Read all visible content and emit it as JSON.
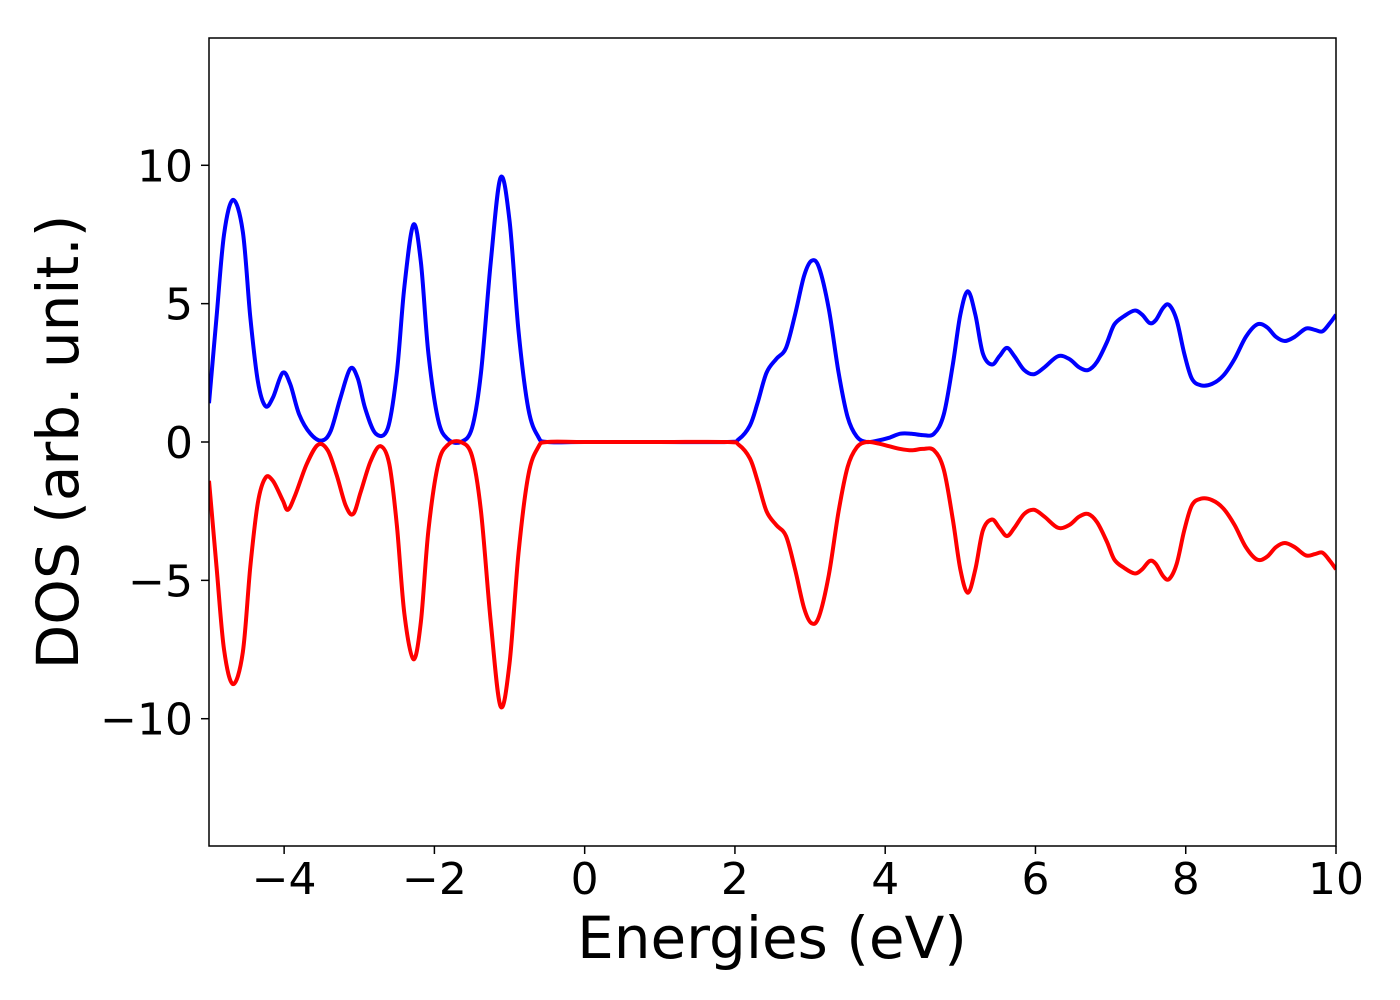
{
  "chart_data": {
    "type": "line",
    "title": "",
    "xlabel": "Energies (eV)",
    "ylabel": "DOS (arb. unit.)",
    "xlim": [
      -5,
      10
    ],
    "ylim": [
      -14.6,
      14.6
    ],
    "grid": false,
    "legend": "none",
    "x_ticks": [
      -4,
      -2,
      0,
      2,
      4,
      6,
      8,
      10
    ],
    "x_tick_labels": [
      "−4",
      "−2",
      "0",
      "2",
      "4",
      "6",
      "8",
      "10"
    ],
    "y_ticks": [
      10,
      5,
      0,
      -5,
      -10
    ],
    "y_tick_labels": [
      "10",
      "5",
      "0",
      "−5",
      "−10"
    ],
    "series": [
      {
        "color": "#0000ff",
        "points": [
          [
            -5.0,
            1.4
          ],
          [
            -4.9,
            4.5
          ],
          [
            -4.8,
            7.5
          ],
          [
            -4.68,
            8.75
          ],
          [
            -4.55,
            7.6
          ],
          [
            -4.45,
            4.5
          ],
          [
            -4.35,
            2.2
          ],
          [
            -4.25,
            1.3
          ],
          [
            -4.15,
            1.6
          ],
          [
            -4.02,
            2.5
          ],
          [
            -3.92,
            2.1
          ],
          [
            -3.8,
            1.0
          ],
          [
            -3.65,
            0.3
          ],
          [
            -3.5,
            0.05
          ],
          [
            -3.38,
            0.4
          ],
          [
            -3.25,
            1.6
          ],
          [
            -3.12,
            2.65
          ],
          [
            -3.02,
            2.3
          ],
          [
            -2.92,
            1.2
          ],
          [
            -2.78,
            0.3
          ],
          [
            -2.62,
            0.5
          ],
          [
            -2.5,
            2.5
          ],
          [
            -2.4,
            5.6
          ],
          [
            -2.28,
            7.85
          ],
          [
            -2.18,
            6.5
          ],
          [
            -2.08,
            3.2
          ],
          [
            -1.95,
            0.8
          ],
          [
            -1.82,
            0.1
          ],
          [
            -1.65,
            0.0
          ],
          [
            -1.5,
            0.5
          ],
          [
            -1.38,
            2.5
          ],
          [
            -1.25,
            6.5
          ],
          [
            -1.12,
            9.55
          ],
          [
            -1.0,
            8.0
          ],
          [
            -0.88,
            4.0
          ],
          [
            -0.75,
            1.2
          ],
          [
            -0.62,
            0.2
          ],
          [
            -0.5,
            0.0
          ],
          [
            0.0,
            0.0
          ],
          [
            1.0,
            0.0
          ],
          [
            1.9,
            0.0
          ],
          [
            2.05,
            0.1
          ],
          [
            2.2,
            0.6
          ],
          [
            2.3,
            1.4
          ],
          [
            2.42,
            2.5
          ],
          [
            2.55,
            3.0
          ],
          [
            2.68,
            3.4
          ],
          [
            2.8,
            4.6
          ],
          [
            2.92,
            6.0
          ],
          [
            3.02,
            6.55
          ],
          [
            3.12,
            6.3
          ],
          [
            3.25,
            4.8
          ],
          [
            3.38,
            2.5
          ],
          [
            3.5,
            0.9
          ],
          [
            3.62,
            0.2
          ],
          [
            3.75,
            0.0
          ],
          [
            3.9,
            0.05
          ],
          [
            4.05,
            0.15
          ],
          [
            4.2,
            0.3
          ],
          [
            4.35,
            0.3
          ],
          [
            4.5,
            0.25
          ],
          [
            4.65,
            0.3
          ],
          [
            4.78,
            1.0
          ],
          [
            4.9,
            2.8
          ],
          [
            5.0,
            4.6
          ],
          [
            5.1,
            5.45
          ],
          [
            5.2,
            4.6
          ],
          [
            5.3,
            3.2
          ],
          [
            5.42,
            2.8
          ],
          [
            5.52,
            3.1
          ],
          [
            5.62,
            3.4
          ],
          [
            5.72,
            3.1
          ],
          [
            5.85,
            2.6
          ],
          [
            5.98,
            2.45
          ],
          [
            6.12,
            2.7
          ],
          [
            6.3,
            3.1
          ],
          [
            6.45,
            3.0
          ],
          [
            6.58,
            2.7
          ],
          [
            6.7,
            2.6
          ],
          [
            6.82,
            2.9
          ],
          [
            6.95,
            3.6
          ],
          [
            7.05,
            4.25
          ],
          [
            7.18,
            4.55
          ],
          [
            7.32,
            4.75
          ],
          [
            7.42,
            4.6
          ],
          [
            7.52,
            4.3
          ],
          [
            7.6,
            4.4
          ],
          [
            7.7,
            4.85
          ],
          [
            7.78,
            4.95
          ],
          [
            7.88,
            4.4
          ],
          [
            7.98,
            3.2
          ],
          [
            8.08,
            2.3
          ],
          [
            8.2,
            2.05
          ],
          [
            8.35,
            2.1
          ],
          [
            8.5,
            2.4
          ],
          [
            8.65,
            3.0
          ],
          [
            8.8,
            3.8
          ],
          [
            8.95,
            4.25
          ],
          [
            9.08,
            4.15
          ],
          [
            9.2,
            3.8
          ],
          [
            9.32,
            3.65
          ],
          [
            9.45,
            3.8
          ],
          [
            9.6,
            4.1
          ],
          [
            9.72,
            4.05
          ],
          [
            9.82,
            4.0
          ],
          [
            9.92,
            4.3
          ],
          [
            10.0,
            4.6
          ]
        ]
      },
      {
        "color": "#ff0000",
        "points": [
          [
            -5.0,
            -1.4
          ],
          [
            -4.9,
            -4.5
          ],
          [
            -4.8,
            -7.5
          ],
          [
            -4.68,
            -8.75
          ],
          [
            -4.55,
            -7.6
          ],
          [
            -4.45,
            -4.5
          ],
          [
            -4.35,
            -2.2
          ],
          [
            -4.25,
            -1.3
          ],
          [
            -4.15,
            -1.4
          ],
          [
            -4.02,
            -2.1
          ],
          [
            -3.95,
            -2.45
          ],
          [
            -3.85,
            -1.9
          ],
          [
            -3.7,
            -0.8
          ],
          [
            -3.55,
            -0.1
          ],
          [
            -3.42,
            -0.3
          ],
          [
            -3.3,
            -1.2
          ],
          [
            -3.18,
            -2.3
          ],
          [
            -3.08,
            -2.6
          ],
          [
            -2.98,
            -1.8
          ],
          [
            -2.85,
            -0.7
          ],
          [
            -2.72,
            -0.15
          ],
          [
            -2.6,
            -0.8
          ],
          [
            -2.5,
            -3.0
          ],
          [
            -2.4,
            -6.2
          ],
          [
            -2.28,
            -7.85
          ],
          [
            -2.18,
            -6.5
          ],
          [
            -2.08,
            -3.2
          ],
          [
            -1.95,
            -0.8
          ],
          [
            -1.82,
            -0.1
          ],
          [
            -1.65,
            -0.0
          ],
          [
            -1.5,
            -0.5
          ],
          [
            -1.38,
            -2.5
          ],
          [
            -1.25,
            -6.5
          ],
          [
            -1.12,
            -9.55
          ],
          [
            -1.0,
            -8.0
          ],
          [
            -0.88,
            -4.0
          ],
          [
            -0.75,
            -1.2
          ],
          [
            -0.62,
            -0.2
          ],
          [
            -0.5,
            0.0
          ],
          [
            0.0,
            0.0
          ],
          [
            1.0,
            0.0
          ],
          [
            1.9,
            0.0
          ],
          [
            2.05,
            -0.1
          ],
          [
            2.2,
            -0.6
          ],
          [
            2.3,
            -1.4
          ],
          [
            2.42,
            -2.5
          ],
          [
            2.55,
            -3.0
          ],
          [
            2.68,
            -3.4
          ],
          [
            2.8,
            -4.6
          ],
          [
            2.92,
            -6.0
          ],
          [
            3.02,
            -6.55
          ],
          [
            3.12,
            -6.3
          ],
          [
            3.25,
            -4.8
          ],
          [
            3.38,
            -2.5
          ],
          [
            3.5,
            -0.9
          ],
          [
            3.62,
            -0.2
          ],
          [
            3.75,
            0.0
          ],
          [
            3.9,
            -0.05
          ],
          [
            4.05,
            -0.15
          ],
          [
            4.2,
            -0.25
          ],
          [
            4.35,
            -0.3
          ],
          [
            4.5,
            -0.25
          ],
          [
            4.65,
            -0.3
          ],
          [
            4.78,
            -1.0
          ],
          [
            4.9,
            -2.8
          ],
          [
            5.0,
            -4.6
          ],
          [
            5.1,
            -5.45
          ],
          [
            5.2,
            -4.6
          ],
          [
            5.3,
            -3.2
          ],
          [
            5.42,
            -2.8
          ],
          [
            5.52,
            -3.1
          ],
          [
            5.62,
            -3.4
          ],
          [
            5.72,
            -3.1
          ],
          [
            5.85,
            -2.6
          ],
          [
            5.98,
            -2.45
          ],
          [
            6.12,
            -2.7
          ],
          [
            6.3,
            -3.1
          ],
          [
            6.45,
            -3.0
          ],
          [
            6.58,
            -2.7
          ],
          [
            6.7,
            -2.6
          ],
          [
            6.82,
            -2.9
          ],
          [
            6.95,
            -3.6
          ],
          [
            7.05,
            -4.25
          ],
          [
            7.18,
            -4.55
          ],
          [
            7.32,
            -4.75
          ],
          [
            7.42,
            -4.6
          ],
          [
            7.52,
            -4.3
          ],
          [
            7.6,
            -4.4
          ],
          [
            7.7,
            -4.85
          ],
          [
            7.78,
            -4.95
          ],
          [
            7.88,
            -4.4
          ],
          [
            7.98,
            -3.2
          ],
          [
            8.08,
            -2.3
          ],
          [
            8.2,
            -2.05
          ],
          [
            8.35,
            -2.1
          ],
          [
            8.5,
            -2.4
          ],
          [
            8.65,
            -3.0
          ],
          [
            8.8,
            -3.8
          ],
          [
            8.95,
            -4.25
          ],
          [
            9.08,
            -4.15
          ],
          [
            9.2,
            -3.8
          ],
          [
            9.32,
            -3.65
          ],
          [
            9.45,
            -3.8
          ],
          [
            9.6,
            -4.1
          ],
          [
            9.72,
            -4.05
          ],
          [
            9.82,
            -4.0
          ],
          [
            9.92,
            -4.3
          ],
          [
            10.0,
            -4.6
          ]
        ]
      }
    ]
  }
}
